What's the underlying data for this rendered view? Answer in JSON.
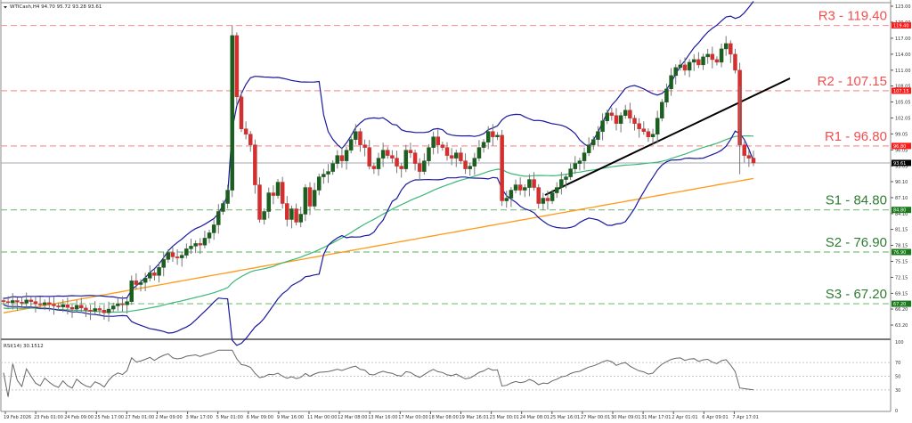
{
  "header": {
    "symbol": "WTICash,H4",
    "ohlc": "94.70 95.72 93.28 93.61",
    "title": "WTICash,H4  94.70 95.72 93.28 93.61"
  },
  "colors": {
    "resistance": "#f05050",
    "support": "#2e7d32",
    "bull_candle": "#1b5e20",
    "bear_candle": "#d32f2f",
    "bollinger": "#1a1aa0",
    "ma_green": "#3cb878",
    "ma_orange": "#ff9a1a",
    "trendline": "#000000",
    "rsi": "#666666",
    "current_price_bg": "#000000"
  },
  "levels": [
    {
      "name": "R3",
      "value": 119.4,
      "label": "R3 - 119.40",
      "tag": "119.40",
      "type": "resistance"
    },
    {
      "name": "R2",
      "value": 107.15,
      "label": "R2 - 107.15",
      "tag": "107.15",
      "type": "resistance"
    },
    {
      "name": "R1",
      "value": 96.8,
      "label": "R1 - 96.80",
      "tag": "96.80",
      "type": "resistance"
    },
    {
      "name": "S1",
      "value": 84.8,
      "label": "S1 - 84.80",
      "tag": "84.80",
      "type": "support"
    },
    {
      "name": "S2",
      "value": 76.9,
      "label": "S2 - 76.90",
      "tag": "76.90",
      "type": "support"
    },
    {
      "name": "S3",
      "value": 67.2,
      "label": "S3 - 67.20",
      "tag": "67.20",
      "type": "support"
    }
  ],
  "current_price": {
    "value": 93.61,
    "tag": "93.61"
  },
  "rsi": {
    "label": "RSI(14) 30.1512",
    "period": 14,
    "value": 30.1512,
    "levels": [
      70,
      50,
      30
    ]
  },
  "chart_data": {
    "type": "candlestick",
    "title": "WTICash,H4",
    "instrument": "WTICash",
    "timeframe": "H4",
    "ohlc_last": {
      "open": 94.7,
      "high": 95.72,
      "low": 93.28,
      "close": 93.61
    },
    "y_axis": {
      "ticks": [
        "123.00",
        "120.00",
        "117.00",
        "114.00",
        "111.00",
        "108.05",
        "105.05",
        "102.05",
        "99.05",
        "96.05",
        "93.05",
        "90.10",
        "87.10",
        "84.10",
        "81.15",
        "78.15",
        "75.15",
        "72.15",
        "69.15",
        "66.20",
        "63.20",
        "60.20"
      ],
      "range": [
        60.2,
        123.0
      ]
    },
    "x_axis": {
      "ticks": [
        "19 Feb 2026",
        "23 Feb 01:00",
        "24 Feb 09:00",
        "25 Feb 17:00",
        "27 Feb 01:00",
        "2 Mar 09:00",
        "3 Mar 17:00",
        "5 Mar 01:00",
        "6 Mar 09:00",
        "9 Mar 16:00",
        "11 Mar 00:00",
        "12 Mar 08:00",
        "13 Mar 16:00",
        "17 Mar 00:00",
        "18 Mar 08:00",
        "19 Mar 16:01",
        "23 Mar 00:01",
        "24 Mar 08:01",
        "25 Mar 16:01",
        "27 Mar 00:01",
        "30 Mar 09:01",
        "31 Mar 17:01",
        "2 Apr 01:01",
        "6 Apr 09:01",
        "7 Apr 17:01"
      ]
    },
    "horizontal_levels": {
      "resistance": [
        {
          "R3": 119.4
        },
        {
          "R2": 107.15
        },
        {
          "R1": 96.8
        }
      ],
      "support": [
        {
          "S1": 84.8
        },
        {
          "S2": 76.9
        },
        {
          "S3": 67.2
        }
      ]
    },
    "indicators": [
      "Bollinger Bands",
      "Moving Average (green)",
      "Moving Average (orange)",
      "Ascending trendline",
      "RSI(14)"
    ],
    "price_path_approx": [
      {
        "x": "19 Feb 2026",
        "close": 67.5
      },
      {
        "x": "25 Feb 17:00",
        "close": 66.5
      },
      {
        "x": "27 Feb 01:00",
        "close": 67.5
      },
      {
        "x": "2 Mar 09:00",
        "close": 73.0
      },
      {
        "x": "3 Mar 17:00",
        "close": 76.5
      },
      {
        "x": "5 Mar 01:00",
        "close": 79.5
      },
      {
        "x": "6 Mar 09:00",
        "close": 88.0
      },
      {
        "x": "6 Mar 09:00",
        "high": 119.4,
        "close": 117.5
      },
      {
        "x": "9 Mar 16:00",
        "close": 90.0
      },
      {
        "x": "11 Mar 00:00",
        "close": 84.0
      },
      {
        "x": "12 Mar 08:00",
        "close": 93.0
      },
      {
        "x": "13 Mar 16:00",
        "close": 95.0
      },
      {
        "x": "17 Mar 00:00",
        "close": 93.5
      },
      {
        "x": "18 Mar 08:00",
        "close": 95.5
      },
      {
        "x": "19 Mar 16:01",
        "close": 98.0
      },
      {
        "x": "23 Mar 00:01",
        "close": 86.5
      },
      {
        "x": "24 Mar 08:01",
        "close": 87.0
      },
      {
        "x": "25 Mar 16:01",
        "close": 89.0
      },
      {
        "x": "27 Mar 00:01",
        "close": 94.5
      },
      {
        "x": "30 Mar 09:01",
        "close": 101.0
      },
      {
        "x": "31 Mar 17:01",
        "close": 98.0
      },
      {
        "x": "2 Apr 01:01",
        "close": 110.0
      },
      {
        "x": "6 Apr 09:01",
        "close": 114.5
      },
      {
        "x": "7 Apr 17:01",
        "close": 93.61
      }
    ],
    "rsi_series": {
      "name": "RSI(14)",
      "last": 30.1512,
      "ylim": [
        0,
        100
      ],
      "levels": [
        70,
        50,
        30
      ]
    }
  }
}
